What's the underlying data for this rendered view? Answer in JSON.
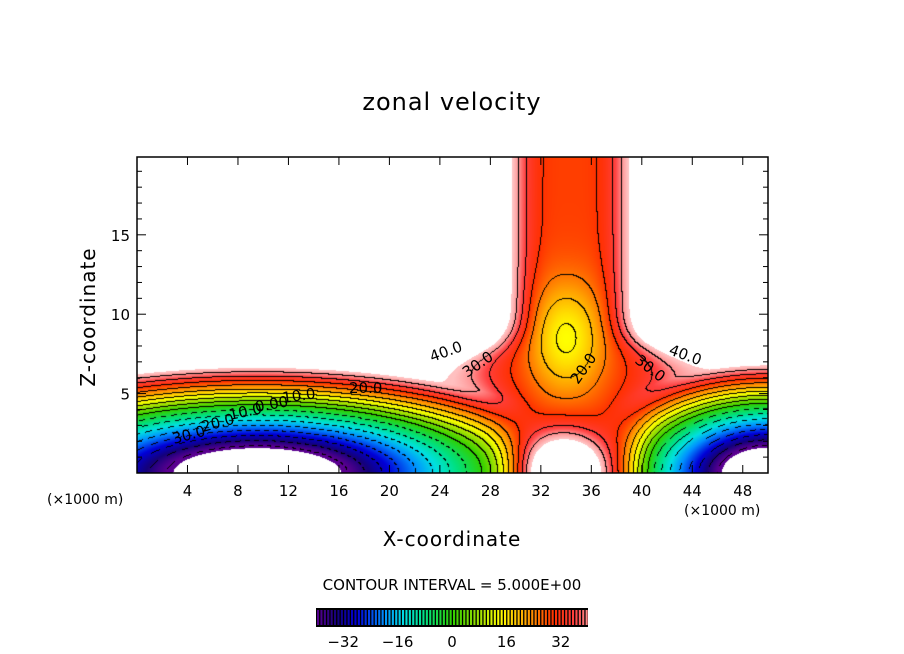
{
  "chart_data": {
    "type": "heatmap",
    "subtype": "filled-contour",
    "title": "zonal velocity",
    "xlabel": "X-coordinate",
    "ylabel": "Z-coordinate",
    "x_unit": "(×1000 m)",
    "z_unit": "(×1000 m)",
    "xlim": [
      0,
      50
    ],
    "ylim": [
      0,
      19.9
    ],
    "x_ticks": [
      4,
      8,
      12,
      16,
      20,
      24,
      28,
      32,
      36,
      40,
      44,
      48
    ],
    "y_ticks": [
      5,
      10,
      15
    ],
    "contour_interval_text": "CONTOUR INTERVAL = 5.000E+00",
    "contour_interval": 5,
    "negative_contours": "dashed",
    "contour_labels": [
      "40.0",
      "30.0",
      "20.0",
      "10.0",
      "0.00",
      "10.0",
      "20.0",
      "30.0",
      "20.0",
      "30.0",
      "40.0"
    ],
    "colorbar": {
      "range": [
        -40,
        40
      ],
      "ticks": [
        -32,
        -16,
        0,
        16,
        32
      ],
      "tick_labels": [
        "−32",
        "−16",
        "0",
        "16",
        "32"
      ]
    },
    "colormap": [
      "#5a0090",
      "#14007a",
      "#0000d8",
      "#0090ff",
      "#00e0e0",
      "#00e080",
      "#30d000",
      "#a0e000",
      "#ffff00",
      "#ffa000",
      "#ff3000",
      "#ff4040",
      "#ff9090",
      "#ffc0c0"
    ]
  }
}
